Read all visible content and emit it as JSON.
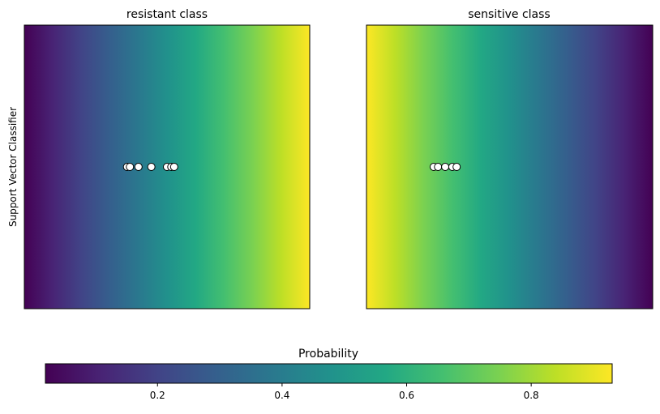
{
  "chart_data": [
    {
      "type": "heatmap",
      "title": "resistant class",
      "ylabel": "Support Vector Classifier",
      "xticks": [],
      "yticks": [],
      "gradient": {
        "direction": "left-to-right",
        "probability_start": 0.02,
        "probability_end": 0.93
      },
      "points": [
        {
          "x": 0.36,
          "y": 0.5
        },
        {
          "x": 0.37,
          "y": 0.5
        },
        {
          "x": 0.4,
          "y": 0.5
        },
        {
          "x": 0.445,
          "y": 0.5
        },
        {
          "x": 0.5,
          "y": 0.5
        },
        {
          "x": 0.515,
          "y": 0.5
        },
        {
          "x": 0.525,
          "y": 0.5
        }
      ]
    },
    {
      "type": "heatmap",
      "title": "sensitive class",
      "xticks": [],
      "yticks": [],
      "gradient": {
        "direction": "left-to-right",
        "probability_start": 0.93,
        "probability_end": 0.02
      },
      "points": [
        {
          "x": 0.235,
          "y": 0.5
        },
        {
          "x": 0.25,
          "y": 0.5
        },
        {
          "x": 0.275,
          "y": 0.5
        },
        {
          "x": 0.3,
          "y": 0.5
        },
        {
          "x": 0.315,
          "y": 0.5
        }
      ]
    }
  ],
  "colorbar": {
    "title": "Probability",
    "range": [
      0.02,
      0.93
    ],
    "ticks": [
      0.2,
      0.4,
      0.6,
      0.8
    ],
    "tick_labels": [
      "0.2",
      "0.4",
      "0.6",
      "0.8"
    ],
    "colormap": "viridis"
  },
  "point_style": {
    "fill": "#ffffff",
    "edge": "#000000"
  }
}
